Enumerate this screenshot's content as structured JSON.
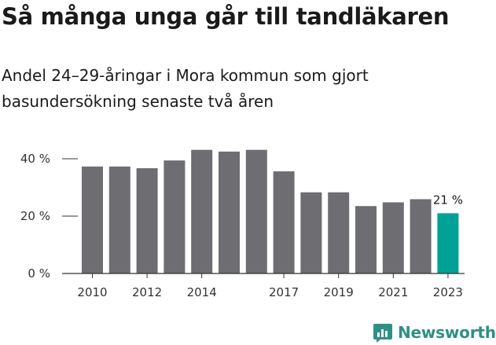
{
  "header": {
    "title": "Så många unga går till tandläkaren",
    "subtitle": "Andel 24–29-åringar i Mora kommun som gjort basundersökning senaste två åren"
  },
  "brand": {
    "name": "Newsworthy",
    "icon": "newsworthy-logo-icon",
    "color": "#2f8f86"
  },
  "colors": {
    "bar": "#6e6d72",
    "highlight": "#00a296",
    "axis": "#333333"
  },
  "chart_data": {
    "type": "bar",
    "title": "Så många unga går till tandläkaren",
    "subtitle": "Andel 24–29-åringar i Mora kommun som gjort basundersökning senaste två åren",
    "xlabel": "",
    "ylabel": "",
    "categories": [
      "2010",
      "2011",
      "2012",
      "2013",
      "2014",
      "2015",
      "2016",
      "2017",
      "2018",
      "2019",
      "2020",
      "2021",
      "2022",
      "2023"
    ],
    "values": [
      37.3,
      37.3,
      36.7,
      39.4,
      43.1,
      42.5,
      43.1,
      35.6,
      28.3,
      28.3,
      23.5,
      24.8,
      25.9,
      21.0
    ],
    "highlight_index": 13,
    "x_tick_labels": [
      "2010",
      "",
      "2012",
      "",
      "2014",
      "",
      "",
      "2017",
      "",
      "2019",
      "",
      "2021",
      "",
      "2023"
    ],
    "y_ticks": [
      0,
      20,
      40
    ],
    "y_tick_labels": [
      "0 %",
      "20 %",
      "40 %"
    ],
    "ylim": [
      0,
      43.5
    ],
    "data_labels": [
      {
        "index": 13,
        "text": "21 %"
      }
    ],
    "grid": false,
    "legend": "none"
  }
}
